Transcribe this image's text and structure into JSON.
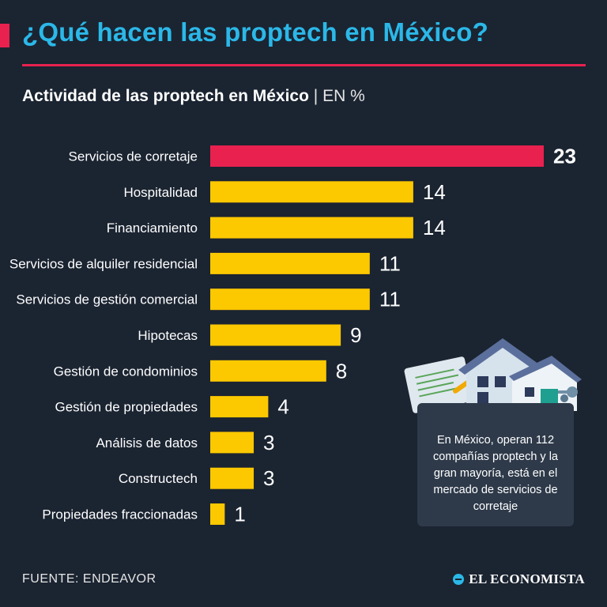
{
  "header": {
    "title": "¿Qué hacen las proptech en México?",
    "subtitle": "Actividad de las proptech en México",
    "unit": "| EN %"
  },
  "chart_data": {
    "type": "bar",
    "orientation": "horizontal",
    "title": "Actividad de las proptech en México",
    "unit": "EN %",
    "categories": [
      "Servicios de corretaje",
      "Hospitalidad",
      "Financiamiento",
      "Servicios de alquiler residencial",
      "Servicios de gestión comercial",
      "Hipotecas",
      "Gestión de condominios",
      "Gestión de propiedades",
      "Análisis de datos",
      "Constructech",
      "Propiedades fraccionadas"
    ],
    "values": [
      23,
      14,
      14,
      11,
      11,
      9,
      8,
      4,
      3,
      3,
      1
    ],
    "highlight_index": 0,
    "colors": {
      "highlight": "#e8214f",
      "default": "#fcc800"
    }
  },
  "note": {
    "text": "En México, operan 112 compañías proptech y la gran mayoría, está en el mercado de servicios de corretaje"
  },
  "footer": {
    "source": "FUENTE: ENDEAVOR",
    "brand": "EL ECONOMISTA"
  },
  "colors": {
    "background": "#1b2431",
    "accent": "#e8214f",
    "title": "#2bb8e8",
    "bar": "#fcc800"
  }
}
